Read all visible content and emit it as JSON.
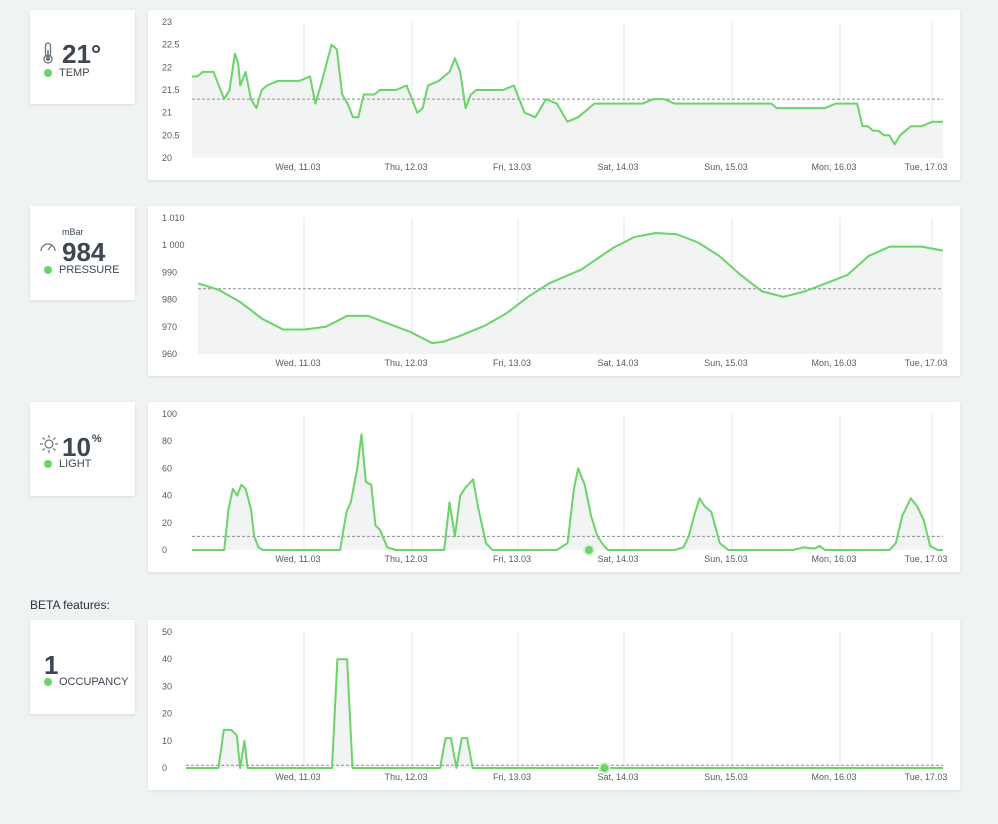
{
  "stats": {
    "temp": {
      "value": "21°",
      "label": "TEMP",
      "unit": ""
    },
    "pressure": {
      "value": "984",
      "label": "PRESSURE",
      "unit": "mBar"
    },
    "light": {
      "value": "10",
      "sup": "%",
      "label": "LIGHT"
    },
    "occupancy": {
      "value": "1",
      "label": "OCCUPANCY"
    }
  },
  "beta_label": "BETA features:",
  "colors": {
    "line": "#6cd36a",
    "fill": "#f2f3f3",
    "grid": "#e3e6e8",
    "ref": "#8a8f93",
    "status_dot": "#6cd36a"
  },
  "chart_data": [
    {
      "name": "temp",
      "type": "area",
      "yticks": [
        "23",
        "22.5",
        "22",
        "21.5",
        "21",
        "20.5",
        "20"
      ],
      "ylim": [
        20,
        23
      ],
      "xlabels": [
        "Wed, 11.03",
        "Thu, 12.03",
        "Fri, 13.03",
        "Sat, 14.03",
        "Sun, 15.03",
        "Mon, 16.03",
        "Tue, 17.03"
      ],
      "xlim": [
        0,
        7
      ],
      "reference": 21.3,
      "marker": null,
      "x": [
        0,
        0.05,
        0.1,
        0.2,
        0.25,
        0.3,
        0.35,
        0.4,
        0.43,
        0.45,
        0.5,
        0.55,
        0.6,
        0.65,
        0.7,
        0.8,
        0.9,
        1.0,
        1.1,
        1.15,
        1.2,
        1.3,
        1.35,
        1.4,
        1.45,
        1.5,
        1.55,
        1.6,
        1.7,
        1.75,
        1.8,
        1.9,
        2.0,
        2.1,
        2.15,
        2.2,
        2.3,
        2.4,
        2.45,
        2.5,
        2.55,
        2.6,
        2.65,
        2.7,
        2.75,
        2.8,
        2.9,
        3.0,
        3.1,
        3.2,
        3.3,
        3.4,
        3.5,
        3.6,
        3.7,
        3.75,
        3.8,
        3.9,
        4.0,
        4.1,
        4.2,
        4.3,
        4.4,
        4.5,
        4.55,
        4.6,
        4.7,
        4.8,
        4.9,
        5.0,
        5.1,
        5.2,
        5.3,
        5.4,
        5.45,
        5.5,
        5.6,
        5.65,
        5.7,
        5.8,
        5.9,
        6.0,
        6.1,
        6.15,
        6.2,
        6.25,
        6.3,
        6.35,
        6.4,
        6.45,
        6.5,
        6.55,
        6.6,
        6.65,
        6.7,
        6.8,
        6.9,
        7.0
      ],
      "y": [
        21.8,
        21.8,
        21.9,
        21.9,
        21.6,
        21.3,
        21.5,
        22.3,
        22.1,
        21.6,
        21.9,
        21.3,
        21.1,
        21.5,
        21.6,
        21.7,
        21.7,
        21.7,
        21.8,
        21.2,
        21.6,
        22.5,
        22.4,
        21.4,
        21.2,
        20.9,
        20.9,
        21.4,
        21.4,
        21.5,
        21.5,
        21.5,
        21.6,
        21.0,
        21.1,
        21.6,
        21.7,
        21.9,
        22.2,
        21.9,
        21.1,
        21.4,
        21.5,
        21.5,
        21.5,
        21.5,
        21.5,
        21.6,
        21.0,
        20.9,
        21.3,
        21.2,
        20.8,
        20.9,
        21.1,
        21.2,
        21.2,
        21.2,
        21.2,
        21.2,
        21.2,
        21.3,
        21.3,
        21.2,
        21.2,
        21.2,
        21.2,
        21.2,
        21.2,
        21.2,
        21.2,
        21.2,
        21.2,
        21.2,
        21.1,
        21.1,
        21.1,
        21.1,
        21.1,
        21.1,
        21.1,
        21.2,
        21.2,
        21.2,
        21.2,
        20.7,
        20.7,
        20.6,
        20.6,
        20.5,
        20.5,
        20.3,
        20.5,
        20.6,
        20.7,
        20.7,
        20.8,
        20.8
      ]
    },
    {
      "name": "pressure",
      "type": "area",
      "yticks": [
        "1 010",
        "1 000",
        "990",
        "980",
        "970",
        "960"
      ],
      "ylim": [
        960,
        1010
      ],
      "xlabels": [
        "Wed, 11.03",
        "Thu, 12.03",
        "Fri, 13.03",
        "Sat, 14.03",
        "Sun, 15.03",
        "Mon, 16.03",
        "Tue, 17.03"
      ],
      "xlim": [
        0,
        7
      ],
      "reference": 984,
      "marker": null,
      "x": [
        0,
        0.2,
        0.4,
        0.6,
        0.8,
        1.0,
        1.2,
        1.4,
        1.6,
        1.8,
        2.0,
        2.2,
        2.3,
        2.45,
        2.7,
        2.9,
        3.1,
        3.3,
        3.6,
        3.9,
        4.1,
        4.3,
        4.5,
        4.7,
        4.9,
        5.1,
        5.3,
        5.5,
        5.7,
        5.9,
        6.1,
        6.3,
        6.5,
        6.8,
        7.0
      ],
      "y": [
        986,
        983.5,
        979,
        973,
        969,
        969,
        970,
        974,
        974,
        971,
        968,
        964,
        964.5,
        966.5,
        970.5,
        975,
        981,
        986,
        991,
        999,
        1003,
        1004.5,
        1004,
        1001,
        996,
        989,
        983,
        981,
        983,
        986,
        989,
        996,
        999.5,
        999.5,
        998
      ]
    },
    {
      "name": "light",
      "type": "area",
      "yticks": [
        "100",
        "80",
        "60",
        "40",
        "20",
        "0"
      ],
      "ylim": [
        0,
        100
      ],
      "xlabels": [
        "Wed, 11.03",
        "Thu, 12.03",
        "Fri, 13.03",
        "Sat, 14.03",
        "Sun, 15.03",
        "Mon, 16.03",
        "Tue, 17.03"
      ],
      "xlim": [
        0,
        7
      ],
      "reference": 10,
      "marker": {
        "x": 3.7,
        "y": 0
      },
      "x": [
        0,
        0.2,
        0.3,
        0.34,
        0.38,
        0.42,
        0.46,
        0.5,
        0.55,
        0.58,
        0.62,
        0.66,
        0.72,
        0.8,
        1.0,
        1.2,
        1.3,
        1.38,
        1.44,
        1.48,
        1.54,
        1.58,
        1.62,
        1.67,
        1.71,
        1.75,
        1.82,
        1.9,
        2.1,
        2.3,
        2.35,
        2.4,
        2.45,
        2.5,
        2.55,
        2.62,
        2.67,
        2.74,
        2.8,
        2.9,
        3.1,
        3.3,
        3.4,
        3.5,
        3.56,
        3.6,
        3.66,
        3.72,
        3.78,
        3.84,
        3.88,
        3.95,
        4.05,
        4.2,
        4.35,
        4.5,
        4.58,
        4.63,
        4.68,
        4.73,
        4.78,
        4.84,
        4.92,
        5.0,
        5.2,
        5.4,
        5.6,
        5.7,
        5.8,
        5.85,
        5.9,
        6.0,
        6.2,
        6.4,
        6.5,
        6.56,
        6.62,
        6.7,
        6.76,
        6.82,
        6.88,
        6.95,
        7.0
      ],
      "y": [
        0,
        0,
        0,
        30,
        45,
        40,
        48,
        45,
        30,
        10,
        2,
        0,
        0,
        0,
        0,
        0,
        0,
        0,
        28,
        35,
        60,
        85,
        50,
        48,
        18,
        15,
        2,
        0,
        0,
        0,
        0,
        35,
        10,
        40,
        46,
        52,
        30,
        5,
        0,
        0,
        0,
        0,
        0,
        5,
        45,
        60,
        48,
        25,
        10,
        3,
        0,
        0,
        0,
        0,
        0,
        0,
        2,
        10,
        25,
        38,
        32,
        28,
        5,
        0,
        0,
        0,
        0,
        2,
        1,
        3,
        0,
        0,
        0,
        0,
        0,
        5,
        25,
        38,
        32,
        22,
        3,
        0,
        0
      ]
    },
    {
      "name": "occupancy",
      "type": "area",
      "yticks": [
        "50",
        "40",
        "30",
        "20",
        "10",
        "0"
      ],
      "ylim": [
        0,
        50
      ],
      "xlabels": [
        "Wed, 11.03",
        "Thu, 12.03",
        "Fri, 13.03",
        "Sat, 14.03",
        "Sun, 15.03",
        "Mon, 16.03",
        "Tue, 17.03"
      ],
      "xlim": [
        0,
        7
      ],
      "reference": 1,
      "marker": {
        "x": 3.87,
        "y": 0
      },
      "x": [
        0,
        0.3,
        0.35,
        0.42,
        0.47,
        0.5,
        0.54,
        0.57,
        0.6,
        0.9,
        1.35,
        1.4,
        1.49,
        1.54,
        1.6,
        2.3,
        2.35,
        2.4,
        2.45,
        2.5,
        2.55,
        2.6,
        2.65,
        2.7,
        2.75,
        3.0,
        3.87,
        7.0
      ],
      "y": [
        0,
        0,
        14,
        14,
        12,
        0,
        10,
        0,
        0,
        0,
        0,
        40,
        40,
        0,
        0,
        0,
        0,
        11,
        11,
        0,
        11,
        11,
        0,
        0,
        0,
        0,
        0,
        0
      ]
    }
  ]
}
